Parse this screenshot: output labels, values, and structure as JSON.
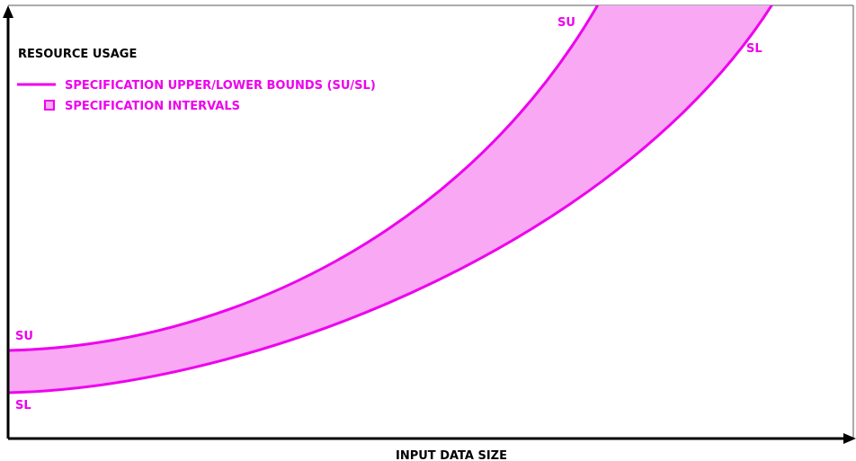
{
  "axes": {
    "y_label": "RESOURCE USAGE",
    "x_label": "INPUT DATA SIZE"
  },
  "legend": {
    "items": [
      {
        "symbol": "line",
        "label": "SPECIFICATION UPPER/LOWER BOUNDS (SU/SL)"
      },
      {
        "symbol": "box",
        "label": "SPECIFICATION INTERVALS"
      }
    ]
  },
  "curves": {
    "upper_start_label": "SU",
    "lower_start_label": "SL",
    "upper_end_label": "SU",
    "lower_end_label": "SL"
  },
  "colors": {
    "bound_line": "#ee00ee",
    "interval_fill": "#f9a8f4",
    "axis": "#000000",
    "frame": "#555555"
  }
}
